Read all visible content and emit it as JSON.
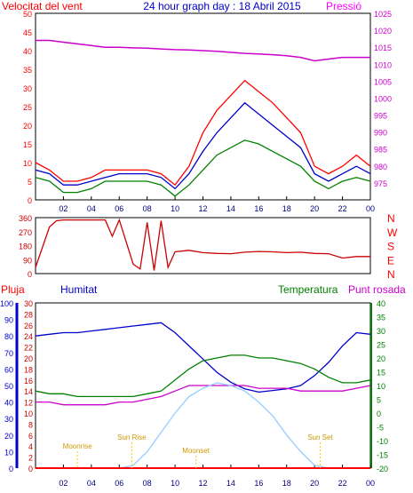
{
  "header": {
    "left_label": "Velocitat del vent",
    "title": "24 hour graph day : 18 Abril 2015",
    "right_label": "Pressió"
  },
  "colors": {
    "red": "#ff0000",
    "blue": "#0000cc",
    "green": "#008000",
    "magenta": "#cc00cc",
    "lightblue": "#99ccff",
    "yellow": "#ffcc00",
    "darkred": "#cc0000",
    "grid": "#000000"
  },
  "chart_data": [
    {
      "type": "line",
      "name": "wind_speed_pressure",
      "x_ticks": [
        "02",
        "04",
        "06",
        "08",
        "10",
        "12",
        "14",
        "16",
        "18",
        "20",
        "22",
        "00"
      ],
      "y_left": {
        "label": "Velocitat del vent",
        "range": [
          0,
          50
        ],
        "ticks": [
          0,
          5,
          10,
          15,
          20,
          25,
          30,
          35,
          40,
          45,
          50
        ]
      },
      "y_right": {
        "label": "Pressió",
        "range": [
          970,
          1025
        ],
        "ticks": [
          975,
          980,
          985,
          990,
          995,
          1000,
          1005,
          1010,
          1015,
          1020,
          1025
        ]
      },
      "hours": [
        0,
        1,
        2,
        3,
        4,
        5,
        6,
        7,
        8,
        9,
        10,
        11,
        12,
        13,
        14,
        15,
        16,
        17,
        18,
        19,
        20,
        21,
        22,
        23,
        24
      ],
      "series": [
        {
          "name": "gust",
          "axis": "left",
          "values": [
            10,
            8,
            5,
            5,
            6,
            8,
            8,
            8,
            8,
            7,
            4,
            9,
            18,
            24,
            28,
            32,
            29,
            26,
            22,
            18,
            9,
            7,
            9,
            12,
            9
          ]
        },
        {
          "name": "average",
          "axis": "left",
          "values": [
            8,
            7,
            4,
            4,
            5,
            6,
            7,
            7,
            7,
            6,
            3,
            7,
            13,
            18,
            22,
            26,
            23,
            20,
            17,
            14,
            7,
            5,
            7,
            9,
            7
          ]
        },
        {
          "name": "minimum",
          "axis": "left",
          "values": [
            6,
            5,
            2,
            2,
            3,
            5,
            5,
            5,
            5,
            4,
            1,
            4,
            8,
            12,
            14,
            16,
            15,
            13,
            11,
            9,
            5,
            3,
            5,
            6,
            5
          ]
        },
        {
          "name": "pressure",
          "axis": "right",
          "values": [
            1017,
            1017,
            1016.5,
            1016,
            1015.5,
            1015,
            1015,
            1014.8,
            1014.7,
            1014.5,
            1014.3,
            1014.2,
            1014,
            1013.8,
            1013.5,
            1013.2,
            1013,
            1012.8,
            1012.5,
            1012,
            1011,
            1011.5,
            1012,
            1012,
            1012
          ]
        }
      ]
    },
    {
      "type": "line",
      "name": "wind_direction",
      "y_left": {
        "range": [
          0,
          360
        ],
        "ticks": [
          0,
          90,
          180,
          270,
          360
        ]
      },
      "y_right": {
        "ticks": [
          "N",
          "E",
          "S",
          "W",
          "N"
        ]
      },
      "hours": [
        0,
        1,
        1.5,
        2,
        3,
        4,
        5,
        5.5,
        6,
        7,
        7.5,
        8,
        8.5,
        9,
        9.5,
        10,
        11,
        12,
        13,
        14,
        15,
        16,
        17,
        18,
        19,
        20,
        21,
        22,
        23,
        24
      ],
      "values": [
        40,
        300,
        340,
        345,
        345,
        345,
        345,
        240,
        345,
        60,
        30,
        330,
        20,
        340,
        40,
        140,
        150,
        135,
        130,
        128,
        138,
        142,
        140,
        135,
        138,
        130,
        128,
        100,
        110,
        110
      ]
    },
    {
      "type": "line",
      "name": "humidity_temperature",
      "top_labels": {
        "rain": "Pluja",
        "humidity": "Humitat",
        "temperature": "Temperatura",
        "dewpoint": "Punt rosada"
      },
      "axes": {
        "rain": {
          "range": [
            0,
            30
          ],
          "ticks": [
            0,
            2,
            4,
            6,
            8,
            10,
            12,
            14,
            16,
            18,
            20,
            22,
            24,
            26,
            28,
            30
          ]
        },
        "humidity": {
          "range": [
            0,
            100
          ],
          "ticks": [
            0,
            10,
            20,
            30,
            40,
            50,
            60,
            70,
            80,
            90,
            100
          ]
        },
        "temperature": {
          "range": [
            -20,
            40
          ],
          "ticks": [
            -20,
            -15,
            -10,
            -5,
            0,
            5,
            10,
            15,
            20,
            25,
            30,
            35,
            40
          ]
        }
      },
      "hours": [
        0,
        1,
        2,
        3,
        4,
        5,
        6,
        7,
        8,
        9,
        10,
        11,
        12,
        13,
        14,
        15,
        16,
        17,
        18,
        19,
        20,
        21,
        22,
        23,
        24
      ],
      "series": [
        {
          "name": "humidity",
          "axis": "humidity",
          "values": [
            80,
            81,
            82,
            82,
            83,
            84,
            85,
            86,
            87,
            88,
            82,
            74,
            66,
            58,
            52,
            48,
            46,
            47,
            48,
            50,
            56,
            64,
            74,
            82,
            81
          ]
        },
        {
          "name": "temperature",
          "axis": "temperature",
          "values": [
            8,
            7,
            7,
            6,
            6,
            6,
            6,
            6,
            7,
            8,
            12,
            16,
            19,
            20,
            21,
            21,
            20,
            20,
            19,
            18,
            16,
            13,
            11,
            11,
            12
          ]
        },
        {
          "name": "dewpoint",
          "axis": "temperature",
          "values": [
            4,
            4,
            3,
            3,
            3,
            3,
            4,
            4,
            5,
            6,
            8,
            10,
            10,
            10,
            10,
            10,
            9,
            9,
            9,
            8,
            8,
            8,
            8,
            9,
            10
          ]
        },
        {
          "name": "sun_elevation",
          "axis": "temperature",
          "values": [
            -20,
            -20,
            -20,
            -20,
            -20,
            -20,
            -20,
            -19,
            -14,
            -7,
            0,
            6,
            9,
            11,
            10,
            8,
            4,
            -1,
            -8,
            -14,
            -19,
            -20,
            -20,
            -20,
            -20
          ]
        },
        {
          "name": "rain",
          "axis": "rain",
          "values": [
            0,
            0,
            0,
            0,
            0,
            0,
            0,
            0,
            0,
            0,
            0,
            0,
            0,
            0,
            0,
            0,
            0,
            0,
            0,
            0,
            0,
            0,
            0,
            0,
            0
          ]
        }
      ],
      "annotations": [
        {
          "label": "Sun Rise",
          "hour": 6.9
        },
        {
          "label": "Sun Set",
          "hour": 20.4
        },
        {
          "label": "Moonrise",
          "hour": 3.0
        },
        {
          "label": "Moonset",
          "hour": 11.5
        }
      ]
    }
  ]
}
